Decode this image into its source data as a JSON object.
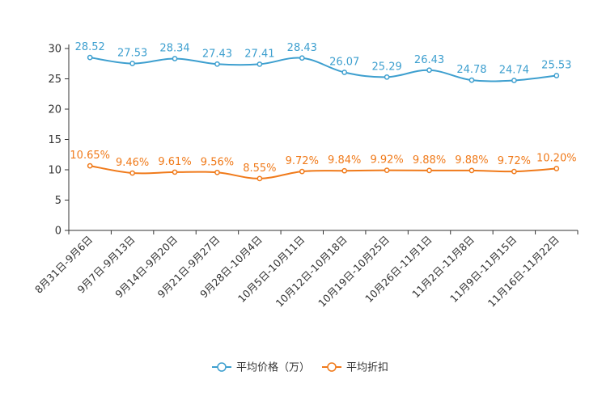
{
  "chart_data": {
    "type": "line",
    "title": "",
    "xlabel": "",
    "ylabel": "",
    "ylim": [
      0,
      30
    ],
    "yticks": [
      0,
      5,
      10,
      15,
      20,
      25,
      30
    ],
    "grid": false,
    "legend_position": "bottom-center",
    "categories": [
      "8月31日-9月6日",
      "9月7日-9月13日",
      "9月14日-9月20日",
      "9月21日-9月27日",
      "9月28日-10月4日",
      "10月5日-10月11日",
      "10月12日-10月18日",
      "10月19日-10月25日",
      "10月26日-11月1日",
      "11月2日-11月8日",
      "11月9日-11月15日",
      "11月16日-11月22日"
    ],
    "series": [
      {
        "name": "平均价格（万）",
        "color": "#3d9fcf",
        "values": [
          28.52,
          27.53,
          28.34,
          27.43,
          27.41,
          28.43,
          26.07,
          25.29,
          26.43,
          24.78,
          24.74,
          25.53
        ],
        "labels": [
          "28.52",
          "27.53",
          "28.34",
          "27.43",
          "27.41",
          "28.43",
          "26.07",
          "25.29",
          "26.43",
          "24.78",
          "24.74",
          "25.53"
        ]
      },
      {
        "name": "平均折扣",
        "color": "#f07a1a",
        "values": [
          10.65,
          9.46,
          9.61,
          9.56,
          8.55,
          9.72,
          9.84,
          9.92,
          9.88,
          9.88,
          9.72,
          10.2
        ],
        "labels": [
          "10.65%",
          "9.46%",
          "9.61%",
          "9.56%",
          "8.55%",
          "9.72%",
          "9.84%",
          "9.92%",
          "9.88%",
          "9.88%",
          "9.72%",
          "10.20%"
        ]
      }
    ]
  }
}
